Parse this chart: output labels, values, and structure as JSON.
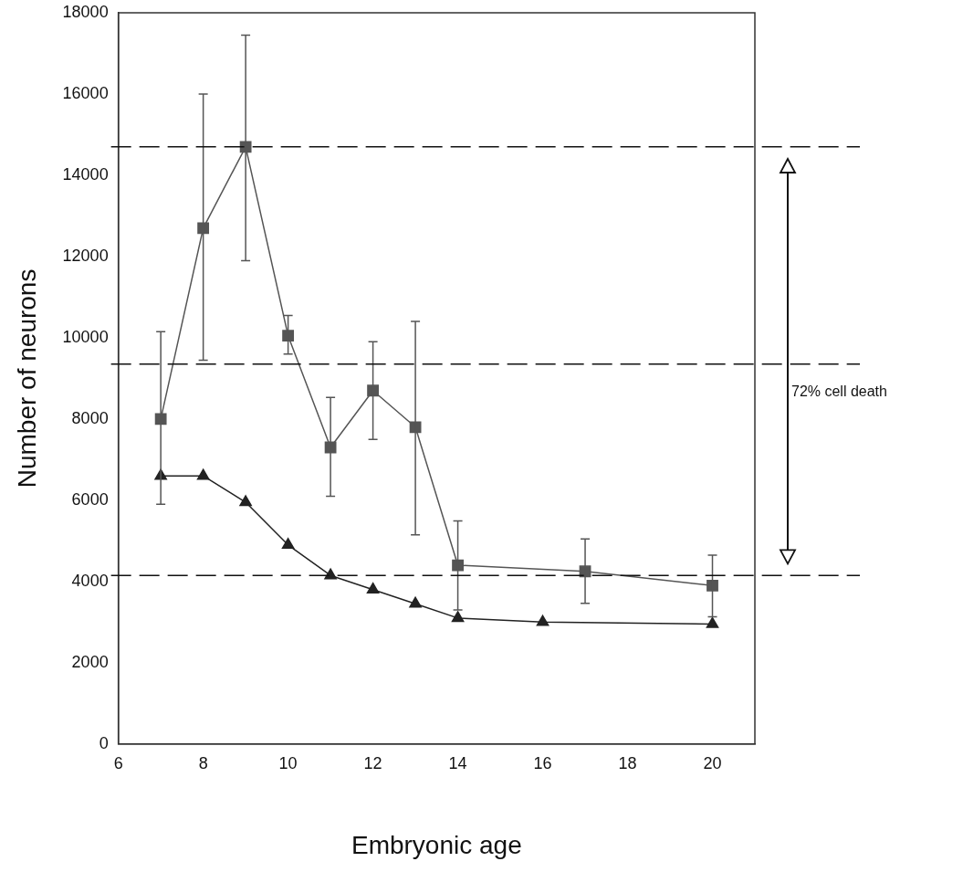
{
  "chart_data": {
    "type": "line",
    "xlabel": "Embryonic age",
    "ylabel": "Number of neurons",
    "xlim": [
      6,
      21
    ],
    "xticks": [
      6,
      8,
      10,
      12,
      14,
      16,
      18,
      20
    ],
    "ylim": [
      0,
      18000
    ],
    "yticks": [
      0,
      2000,
      4000,
      6000,
      8000,
      10000,
      12000,
      14000,
      16000,
      18000
    ],
    "grid": false,
    "legend": false,
    "line_style": "solid",
    "series": [
      {
        "color": "#555555",
        "marker": "square",
        "x": [
          7,
          8,
          9,
          10,
          11,
          12,
          13,
          14,
          17,
          20
        ],
        "values": [
          8000,
          12700,
          14700,
          10050,
          7300,
          8700,
          7800,
          4400,
          4250,
          3900
        ],
        "errors": [
          [
            5900,
            10150
          ],
          [
            9450,
            16000
          ],
          [
            11900,
            17450
          ],
          [
            9600,
            10550
          ],
          [
            6100,
            8530
          ],
          [
            7500,
            9900
          ],
          [
            5150,
            10400
          ],
          [
            3300,
            5490
          ],
          [
            3460,
            5050
          ],
          [
            3130,
            4650
          ]
        ]
      },
      {
        "color": "#222222",
        "marker": "triangle",
        "x": [
          7,
          8,
          9,
          10,
          11,
          12,
          13,
          14,
          16,
          20
        ],
        "values": [
          6600,
          6600,
          5950,
          4900,
          4150,
          3800,
          3450,
          3100,
          3000,
          2950
        ]
      }
    ],
    "ref_lines": [
      {
        "axis": "y",
        "value": 14700,
        "color": "#111111",
        "line_style": "dashed"
      },
      {
        "axis": "y",
        "value": 9350,
        "color": "#111111",
        "line_style": "dashed"
      },
      {
        "axis": "y",
        "value": 4150,
        "color": "#111111",
        "line_style": "dashed"
      }
    ],
    "annotations": [
      "72% cell death"
    ]
  }
}
